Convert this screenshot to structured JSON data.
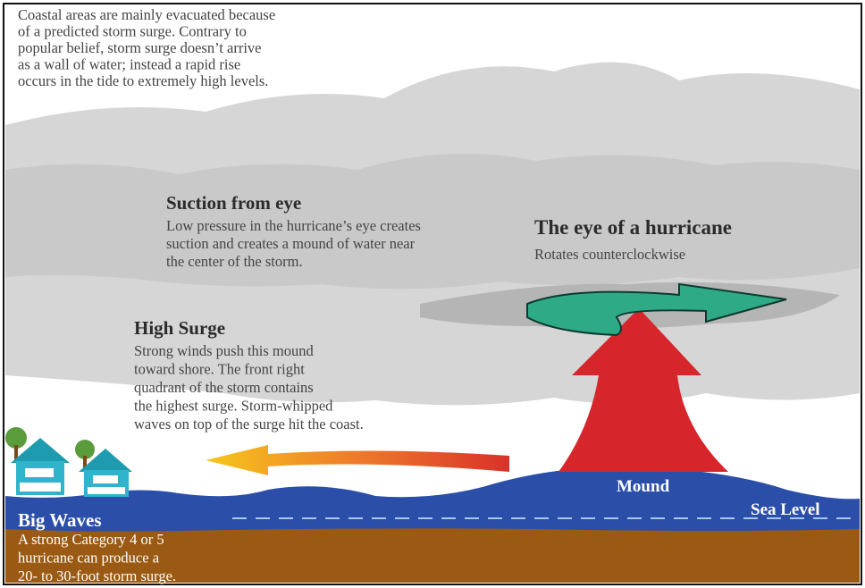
{
  "intro": [
    "Coastal areas are mainly evacuated because",
    "of a predicted storm surge. Contrary to",
    "popular belief, storm surge doesn’t arrive",
    "as a wall of water; instead a rapid rise",
    "occurs in the tide to extremely high levels."
  ],
  "suction_from_eye": {
    "title": "Suction from eye",
    "lines": [
      "Low pressure in the hurricane’s eye creates",
      "suction and creates a mound of water near",
      "the center of the storm."
    ]
  },
  "eye": {
    "title": "The eye of a hurricane",
    "subtitle": "Rotates counterclockwise"
  },
  "high_surge": {
    "title": "High Surge",
    "lines": [
      "Strong winds push this mound",
      "toward shore. The front right",
      "quadrant of the storm contains",
      "the highest surge. Storm-whipped",
      "waves on top of the surge hit the coast."
    ]
  },
  "mound": "Mound",
  "sea_level": "Sea Level",
  "big_waves": {
    "title": "Big Waves",
    "lines": [
      "A strong Category 4 or 5",
      "hurricane can produce a",
      "20- to 30-foot storm surge."
    ]
  }
}
